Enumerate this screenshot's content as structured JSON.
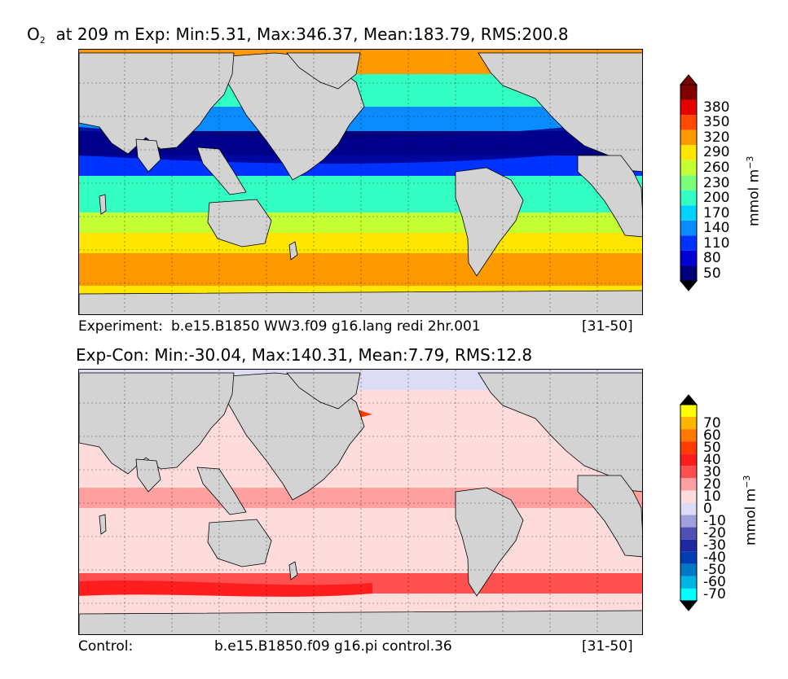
{
  "panels": [
    {
      "title_prefix": "O",
      "title_sub": "2",
      "title_rest": "at 209 m Exp: Min:5.31, Max:346.37, Mean:183.79, RMS:200.8",
      "caption_left": "Experiment:",
      "caption_mid": "b.e15.B1850 WW3.f09 g16.lang redi 2hr.001",
      "caption_right": "[31-50]",
      "unit_text": "mmol m",
      "unit_sup": "−3"
    },
    {
      "title_prefix": "",
      "title_sub": "",
      "title_rest": "Exp-Con: Min:-30.04, Max:140.31, Mean:7.79, RMS:12.8",
      "caption_left": "Control:",
      "caption_mid": "b.e15.B1850.f09 g16.pi control.36",
      "caption_right": "[31-50]",
      "unit_text": "mmol m",
      "unit_sup": "−3"
    }
  ],
  "chart_data": [
    {
      "type": "heatmap",
      "title": "O2 at 209 m Exp: Min:5.31, Max:346.37, Mean:183.79, RMS:200.8",
      "variable": "O2",
      "depth_m": 209,
      "stats": {
        "min": 5.31,
        "max": 346.37,
        "mean": 183.79,
        "rms": 200.8
      },
      "colorbar": {
        "label": "mmol m−3",
        "ticks": [
          50,
          80,
          110,
          140,
          170,
          200,
          230,
          260,
          290,
          320,
          350,
          380
        ],
        "levels": [
          {
            "value": 50,
            "color": "#00007a"
          },
          {
            "value": 80,
            "color": "#0000d4"
          },
          {
            "value": 110,
            "color": "#0033ff"
          },
          {
            "value": 140,
            "color": "#0a8cff"
          },
          {
            "value": 170,
            "color": "#00d2ff"
          },
          {
            "value": 200,
            "color": "#33ffc4"
          },
          {
            "value": 230,
            "color": "#7bff7b"
          },
          {
            "value": 260,
            "color": "#c4ff33"
          },
          {
            "value": 290,
            "color": "#ffe600"
          },
          {
            "value": 320,
            "color": "#ff9900"
          },
          {
            "value": 350,
            "color": "#ff4a00"
          },
          {
            "value": 380,
            "color": "#e60000"
          }
        ],
        "over_color": "#800000",
        "under_color": "#000000",
        "top_segment_color": "#800000",
        "bottom_segment_color": "#000060"
      },
      "land_color": "#d3d3d3"
    },
    {
      "type": "heatmap",
      "title": "Exp-Con: Min:-30.04, Max:140.31, Mean:7.79, RMS:12.8",
      "stats": {
        "min": -30.04,
        "max": 140.31,
        "mean": 7.79,
        "rms": 12.8
      },
      "colorbar": {
        "label": "mmol m−3",
        "ticks": [
          -70,
          -60,
          -50,
          -40,
          -30,
          -20,
          -10,
          0,
          10,
          20,
          30,
          40,
          50,
          60,
          70
        ],
        "levels": [
          {
            "value": -70,
            "color": "#00ffff"
          },
          {
            "value": -60,
            "color": "#00b4e6"
          },
          {
            "value": -50,
            "color": "#0078c8"
          },
          {
            "value": -40,
            "color": "#003cb4"
          },
          {
            "value": -30,
            "color": "#1e28a0"
          },
          {
            "value": -20,
            "color": "#5050b4"
          },
          {
            "value": -10,
            "color": "#a0a0dc"
          },
          {
            "value": 0,
            "color": "#dcdcf5"
          },
          {
            "value": 10,
            "color": "#ffdcdc"
          },
          {
            "value": 20,
            "color": "#ffa0a0"
          },
          {
            "value": 30,
            "color": "#ff5050"
          },
          {
            "value": 40,
            "color": "#ff1e1e"
          },
          {
            "value": 50,
            "color": "#ff3c00"
          },
          {
            "value": 60,
            "color": "#ff7800"
          },
          {
            "value": 70,
            "color": "#ffb400"
          }
        ],
        "over_color": "#000000",
        "under_color": "#000000",
        "top_segment_color": "#ffff00",
        "bottom_segment_color": "#00ffff"
      },
      "land_color": "#d3d3d3"
    }
  ]
}
